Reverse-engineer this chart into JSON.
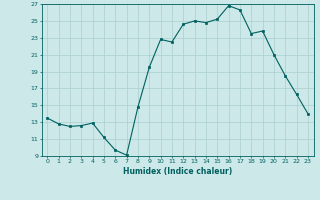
{
  "x": [
    0,
    1,
    2,
    3,
    4,
    5,
    6,
    7,
    8,
    9,
    10,
    11,
    12,
    13,
    14,
    15,
    16,
    17,
    18,
    19,
    20,
    21,
    22,
    23
  ],
  "y": [
    13.5,
    12.8,
    12.5,
    12.6,
    12.9,
    11.2,
    9.7,
    9.1,
    14.8,
    19.5,
    22.8,
    22.5,
    24.6,
    25.0,
    24.8,
    25.2,
    26.8,
    26.3,
    23.5,
    23.8,
    21.0,
    18.5,
    16.3,
    14.0
  ],
  "bg_color": "#cce8e8",
  "grid_color": "#aacfcf",
  "line_color": "#006060",
  "marker_color": "#006060",
  "xlabel": "Humidex (Indice chaleur)",
  "ylim": [
    9,
    27
  ],
  "xlim": [
    -0.5,
    23.5
  ],
  "yticks": [
    9,
    11,
    13,
    15,
    17,
    19,
    21,
    23,
    25,
    27
  ],
  "xticks": [
    0,
    1,
    2,
    3,
    4,
    5,
    6,
    7,
    8,
    9,
    10,
    11,
    12,
    13,
    14,
    15,
    16,
    17,
    18,
    19,
    20,
    21,
    22,
    23
  ]
}
